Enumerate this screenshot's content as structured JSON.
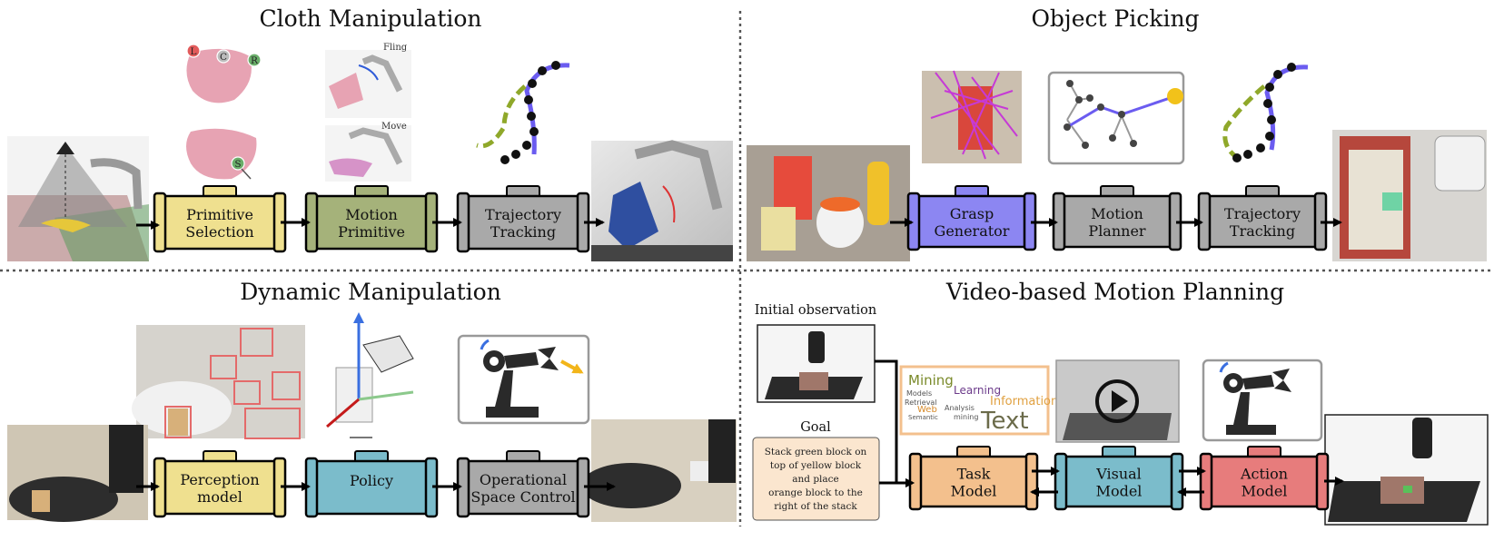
{
  "titles": {
    "cloth": "Cloth Manipulation",
    "picking": "Object Picking",
    "dynamic": "Dynamic Manipulation",
    "video": "Video-based Motion Planning"
  },
  "cloth": {
    "blocks": [
      {
        "line1": "Primitive",
        "line2": "Selection",
        "color": "#efe08f"
      },
      {
        "line1": "Motion",
        "line2": "Primitive",
        "color": "#a5b27a"
      },
      {
        "line1": "Trajectory",
        "line2": "Tracking",
        "color": "#a9a9a9"
      }
    ],
    "fling_label": "Fling",
    "move_label": "Move",
    "markers": [
      "L",
      "C",
      "R",
      "S"
    ]
  },
  "picking": {
    "blocks": [
      {
        "line1": "Grasp",
        "line2": "Generator",
        "color": "#8c86f2"
      },
      {
        "line1": "Motion",
        "line2": "Planner",
        "color": "#a9a9a9"
      },
      {
        "line1": "Trajectory",
        "line2": "Tracking",
        "color": "#a9a9a9"
      }
    ]
  },
  "dynamic": {
    "blocks": [
      {
        "line1": "Perception",
        "line2": "model",
        "color": "#efe08f"
      },
      {
        "line1": "Policy",
        "line2": "",
        "color": "#7bbccb"
      },
      {
        "line1": "Operational",
        "line2": "Space Control",
        "color": "#a9a9a9"
      }
    ]
  },
  "video": {
    "initial_observation": "Initial observation",
    "goal_title": "Goal",
    "goal_lines": [
      "Stack green block on",
      "top of yellow block",
      "and place",
      "orange block to the",
      "right of the stack"
    ],
    "blocks": [
      {
        "line1": "Task",
        "line2": "Model",
        "color": "#f3c08d"
      },
      {
        "line1": "Visual",
        "line2": "Model",
        "color": "#7bbccb"
      },
      {
        "line1": "Action",
        "line2": "Model",
        "color": "#e77c7c"
      }
    ],
    "wordcloud": [
      "Mining",
      "Learning",
      "Models",
      "Retrieval",
      "Information",
      "Web",
      "Analysis",
      "Semantic",
      "mining",
      "Text"
    ]
  },
  "colors": {
    "olive_traj": "#8fa82a",
    "purple_traj": "#6b5cf0",
    "yellow_node": "#f2c21a",
    "blue_arrow": "#3a6fe0",
    "dark_robot": "#2a2a2a"
  }
}
